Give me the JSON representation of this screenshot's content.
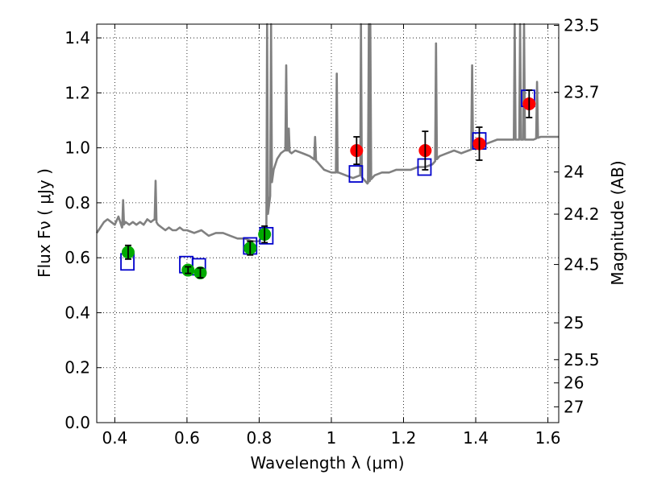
{
  "chart_data": {
    "type": "scatter",
    "xlabel": "Wavelength  λ (μm)",
    "ylabel": "Flux  Fν  ( μJy )",
    "ylabel2": "Magnitude (AB)",
    "xlim": [
      0.35,
      1.63
    ],
    "ylim": [
      0.0,
      1.45
    ],
    "grid": true,
    "x_ticks": [
      0.4,
      0.6,
      0.8,
      1.0,
      1.2,
      1.4,
      1.6
    ],
    "x_tick_labels": [
      "0.4",
      "0.6",
      "0.8",
      "1",
      "1.2",
      "1.4",
      "1.6"
    ],
    "y_ticks": [
      0.0,
      0.2,
      0.4,
      0.6,
      0.8,
      1.0,
      1.2,
      1.4
    ],
    "y_tick_labels": [
      "0.0",
      "0.2",
      "0.4",
      "0.6",
      "0.8",
      "1.0",
      "1.2",
      "1.4"
    ],
    "mag_ticks": [
      23.5,
      23.7,
      24,
      24.2,
      24.5,
      25,
      25.5,
      26,
      27
    ],
    "mag_tick_labels": [
      "23.5",
      "23.7",
      "24",
      "24.2",
      "24.5",
      "25",
      "25.5",
      "26",
      "27"
    ],
    "colors": {
      "spectrum": "#808080",
      "optical_points": "#00aa00",
      "nir_points": "#ff0000",
      "model_boxes": "#0000cc",
      "errorbars": "#000000"
    },
    "series": [
      {
        "kind": "spectrum",
        "x": [
          0.35,
          0.36,
          0.37,
          0.38,
          0.39,
          0.4,
          0.41,
          0.42,
          0.43,
          0.44,
          0.45,
          0.46,
          0.47,
          0.48,
          0.49,
          0.5,
          0.51,
          0.52,
          0.53,
          0.54,
          0.55,
          0.56,
          0.57,
          0.58,
          0.59,
          0.6,
          0.62,
          0.64,
          0.66,
          0.68,
          0.7,
          0.72,
          0.74,
          0.76,
          0.78,
          0.8,
          0.82,
          0.83,
          0.84,
          0.85,
          0.86,
          0.87,
          0.88,
          0.89,
          0.9,
          0.92,
          0.94,
          0.96,
          0.98,
          1.0,
          1.02,
          1.04,
          1.06,
          1.08,
          1.1,
          1.12,
          1.14,
          1.16,
          1.18,
          1.2,
          1.22,
          1.24,
          1.26,
          1.28,
          1.3,
          1.32,
          1.34,
          1.36,
          1.38,
          1.4,
          1.42,
          1.44,
          1.46,
          1.48,
          1.5,
          1.52,
          1.54,
          1.56,
          1.58,
          1.6,
          1.63
        ],
        "y": [
          0.69,
          0.71,
          0.73,
          0.74,
          0.73,
          0.72,
          0.75,
          0.71,
          0.73,
          0.72,
          0.73,
          0.72,
          0.73,
          0.72,
          0.74,
          0.73,
          0.74,
          0.72,
          0.71,
          0.7,
          0.71,
          0.7,
          0.7,
          0.71,
          0.7,
          0.7,
          0.69,
          0.7,
          0.68,
          0.69,
          0.69,
          0.68,
          0.67,
          0.67,
          0.66,
          0.66,
          0.71,
          0.82,
          0.92,
          0.96,
          0.98,
          0.99,
          0.99,
          0.98,
          0.99,
          0.98,
          0.97,
          0.95,
          0.92,
          0.91,
          0.91,
          0.9,
          0.89,
          0.9,
          0.87,
          0.9,
          0.91,
          0.91,
          0.92,
          0.92,
          0.92,
          0.93,
          0.93,
          0.94,
          0.97,
          0.98,
          0.99,
          0.98,
          0.99,
          1.0,
          1.01,
          1.02,
          1.03,
          1.03,
          1.03,
          1.03,
          1.03,
          1.03,
          1.04,
          1.04,
          1.04
        ]
      },
      {
        "kind": "emission_lines",
        "x": [
          0.423,
          0.513,
          0.822,
          0.833,
          0.875,
          0.882,
          0.955,
          1.015,
          1.082,
          1.104,
          1.108,
          1.29,
          1.39,
          1.508,
          1.523,
          1.534,
          1.57
        ],
        "peak": [
          0.81,
          0.88,
          1.45,
          1.45,
          1.3,
          1.07,
          1.04,
          1.27,
          1.45,
          1.45,
          1.45,
          1.38,
          1.3,
          1.45,
          1.45,
          1.45,
          1.24
        ]
      },
      {
        "kind": "model_boxes",
        "x": [
          0.435,
          0.598,
          0.633,
          0.775,
          0.82,
          1.068,
          1.258,
          1.41,
          1.545
        ],
        "y": [
          0.585,
          0.575,
          0.567,
          0.643,
          0.68,
          0.905,
          0.93,
          1.025,
          1.18
        ]
      },
      {
        "kind": "optical_points",
        "x": [
          0.437,
          0.603,
          0.637,
          0.775,
          0.815
        ],
        "y": [
          0.62,
          0.555,
          0.545,
          0.635,
          0.685
        ],
        "err": [
          0.025,
          0.012,
          0.018,
          0.025,
          0.03
        ]
      },
      {
        "kind": "nir_points",
        "x": [
          1.07,
          1.26,
          1.41,
          1.548
        ],
        "y": [
          0.99,
          0.99,
          1.015,
          1.16
        ],
        "err": [
          0.05,
          0.07,
          0.06,
          0.05
        ]
      }
    ]
  }
}
